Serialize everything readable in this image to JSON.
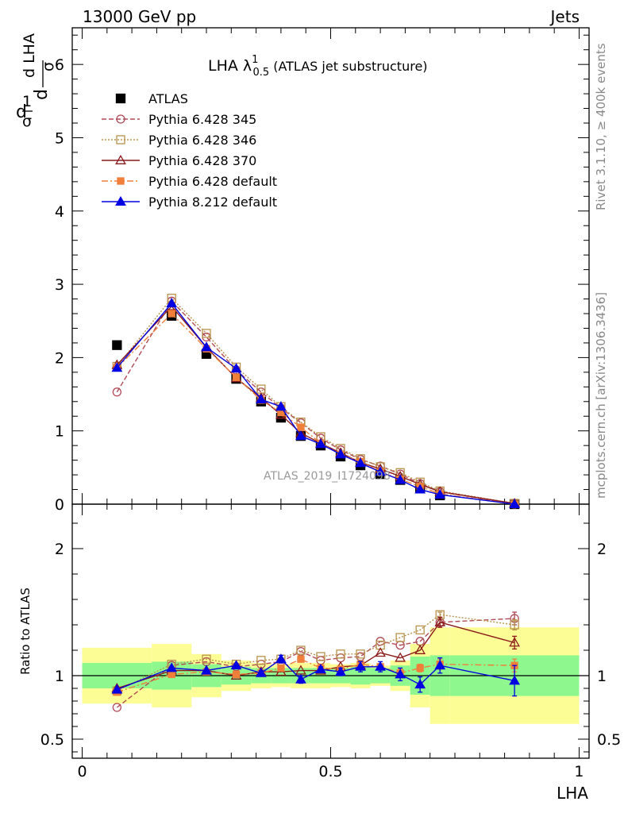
{
  "header": {
    "left": "13000 GeV pp",
    "right": "Jets"
  },
  "side_texts": {
    "rivet": "Rivet 3.1.10, ≥ 400k events",
    "mcplots": "mcplots.cern.ch [arXiv:1306.3436]"
  },
  "plot_title": {
    "main": "LHA λ",
    "sup": "1",
    "sub": "0.5",
    "suffix": " (ATLAS jet substructure)"
  },
  "watermark": "ATLAS_2019_I1724098",
  "axes": {
    "xlabel": "LHA",
    "ratio_ylabel": "Ratio to ATLAS",
    "ylabel_parts": {
      "d": "d",
      "sigma": "σ",
      "one": "1",
      "dlha": "d LHA"
    }
  },
  "chart_data": {
    "type": "line",
    "xlim": [
      -0.02,
      1.02
    ],
    "main_ylim": [
      0,
      6.5
    ],
    "ratio_ylim": [
      0.35,
      2.35
    ],
    "x_ticks": [
      {
        "v": 0,
        "label": "0"
      },
      {
        "v": 0.5,
        "label": "0.5"
      },
      {
        "v": 1,
        "label": "1"
      }
    ],
    "main_y_ticks": [
      {
        "v": 0,
        "label": "0"
      },
      {
        "v": 1,
        "label": "1"
      },
      {
        "v": 2,
        "label": "2"
      },
      {
        "v": 3,
        "label": "3"
      },
      {
        "v": 4,
        "label": "4"
      },
      {
        "v": 5,
        "label": "5"
      },
      {
        "v": 6,
        "label": "6"
      }
    ],
    "ratio_y_ticks": [
      {
        "v": 0.5,
        "label": "0.5"
      },
      {
        "v": 1,
        "label": "1"
      },
      {
        "v": 2,
        "label": "2"
      }
    ],
    "x": [
      0.07,
      0.18,
      0.25,
      0.31,
      0.36,
      0.4,
      0.44,
      0.48,
      0.52,
      0.56,
      0.6,
      0.64,
      0.68,
      0.72,
      0.87
    ],
    "bin_edges": [
      0.0,
      0.14,
      0.22,
      0.28,
      0.34,
      0.38,
      0.42,
      0.46,
      0.5,
      0.54,
      0.58,
      0.62,
      0.66,
      0.7,
      0.74,
      1.0
    ],
    "band_outer": [
      0.22,
      0.25,
      0.17,
      0.12,
      0.1,
      0.09,
      0.1,
      0.1,
      0.09,
      0.1,
      0.08,
      0.12,
      0.25,
      0.38,
      0.38
    ],
    "band_inner": [
      0.1,
      0.11,
      0.09,
      0.07,
      0.06,
      0.06,
      0.06,
      0.06,
      0.06,
      0.07,
      0.06,
      0.08,
      0.15,
      0.16,
      0.16
    ],
    "series": [
      {
        "name": "ATLAS",
        "color": "#000000",
        "marker": "filled-square",
        "dash": "none",
        "line": false,
        "values": [
          2.17,
          2.57,
          2.05,
          1.71,
          1.4,
          1.18,
          0.93,
          0.8,
          0.65,
          0.53,
          0.41,
          0.33,
          0.22,
          0.12,
          0.0
        ]
      },
      {
        "name": "Pythia 6.428 345",
        "color": "#b04a55",
        "marker": "open-circle",
        "dash": "6,3",
        "line": true,
        "values": [
          1.53,
          2.77,
          2.28,
          1.83,
          1.53,
          1.31,
          1.11,
          0.9,
          0.74,
          0.61,
          0.52,
          0.41,
          0.28,
          0.17,
          0.0
        ],
        "ratio": [
          0.75,
          1.08,
          1.11,
          1.07,
          1.09,
          1.11,
          1.19,
          1.12,
          1.14,
          1.15,
          1.27,
          1.24,
          1.27,
          1.42,
          1.45
        ],
        "ratio_err": [
          0,
          0,
          0,
          0,
          0,
          0,
          0,
          0,
          0,
          0,
          0,
          0,
          0,
          0.03,
          0.05
        ]
      },
      {
        "name": "Pythia 6.428 346",
        "color": "#b8924a",
        "marker": "open-square",
        "dash": "2,2",
        "line": true,
        "values": [
          1.88,
          2.81,
          2.33,
          1.87,
          1.57,
          1.33,
          1.12,
          0.92,
          0.76,
          0.62,
          0.51,
          0.43,
          0.3,
          0.18,
          0.01
        ],
        "ratio": [
          0.88,
          1.09,
          1.13,
          1.09,
          1.12,
          1.13,
          1.2,
          1.15,
          1.17,
          1.17,
          1.24,
          1.3,
          1.36,
          1.48,
          1.4
        ],
        "ratio_err": [
          0,
          0,
          0,
          0,
          0,
          0,
          0,
          0,
          0,
          0,
          0,
          0,
          0,
          0.02,
          0.04
        ]
      },
      {
        "name": "Pythia 6.428 370",
        "color": "#8b1a1a",
        "marker": "open-triangle",
        "dash": "none",
        "line": true,
        "values": [
          1.9,
          2.7,
          2.14,
          1.72,
          1.45,
          1.22,
          0.97,
          0.83,
          0.7,
          0.57,
          0.48,
          0.38,
          0.27,
          0.17,
          0.01
        ],
        "ratio": [
          0.9,
          1.04,
          1.04,
          1.0,
          1.03,
          1.03,
          1.04,
          1.04,
          1.07,
          1.08,
          1.18,
          1.14,
          1.2,
          1.42,
          1.26
        ],
        "ratio_err": [
          0,
          0,
          0,
          0,
          0,
          0,
          0,
          0,
          0,
          0,
          0,
          0,
          0,
          0.04,
          0.05
        ]
      },
      {
        "name": "Pythia 6.428 default",
        "color": "#f07f3a",
        "marker": "filled-square",
        "dash": "8,3,2,3",
        "line": true,
        "values": [
          1.86,
          2.6,
          2.12,
          1.73,
          1.42,
          1.25,
          1.05,
          0.83,
          0.68,
          0.58,
          0.44,
          0.34,
          0.24,
          0.14,
          0.0
        ],
        "ratio": [
          0.87,
          1.01,
          1.03,
          1.01,
          1.02,
          1.06,
          1.13,
          1.06,
          1.05,
          1.09,
          1.07,
          1.02,
          1.06,
          1.09,
          1.08
        ],
        "ratio_err": [
          0,
          0,
          0,
          0,
          0,
          0,
          0,
          0,
          0,
          0,
          0,
          0.03,
          0.03,
          0.04,
          0.05
        ]
      },
      {
        "name": "Pythia 8.212 default",
        "color": "#0000e0",
        "marker": "filled-triangle",
        "dash": "none",
        "line": true,
        "values": [
          1.86,
          2.74,
          2.14,
          1.85,
          1.43,
          1.33,
          0.93,
          0.82,
          0.68,
          0.56,
          0.44,
          0.33,
          0.2,
          0.13,
          0.0
        ],
        "ratio": [
          0.89,
          1.06,
          1.04,
          1.08,
          1.02,
          1.13,
          0.97,
          1.05,
          1.03,
          1.07,
          1.07,
          1.01,
          0.93,
          1.08,
          0.96
        ],
        "ratio_err": [
          0.01,
          0.01,
          0.01,
          0.01,
          0.02,
          0.03,
          0.03,
          0.02,
          0.03,
          0.04,
          0.04,
          0.05,
          0.06,
          0.06,
          0.12
        ]
      }
    ]
  }
}
